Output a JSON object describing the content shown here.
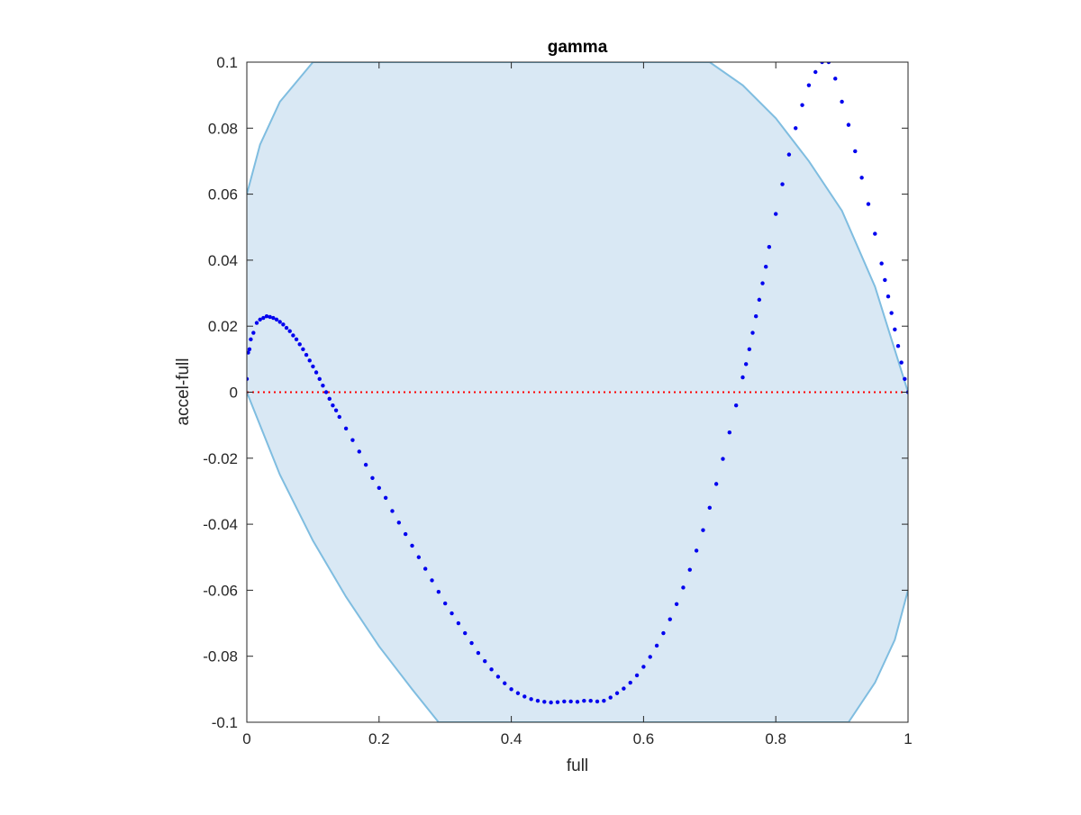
{
  "chart_data": {
    "type": "scatter",
    "title": "gamma",
    "xlabel": "full",
    "ylabel": "accel-full",
    "xlim": [
      0,
      1
    ],
    "ylim": [
      -0.1,
      0.1
    ],
    "xticks": [
      "0",
      "0.2",
      "0.4",
      "0.6",
      "0.8",
      "1"
    ],
    "yticks": [
      "-0.1",
      "-0.08",
      "-0.06",
      "-0.04",
      "-0.02",
      "0",
      "0.02",
      "0.04",
      "0.06",
      "0.08",
      "0.1"
    ],
    "grid": false,
    "legend": "none",
    "reference_line": {
      "y": 0,
      "style": "dotted",
      "color": "#ff0000"
    },
    "shaded_region": {
      "color": "#d9e8f4",
      "edge_color": "#7fbde0",
      "upper_boundary": [
        [
          0,
          0.06
        ],
        [
          0.02,
          0.075
        ],
        [
          0.05,
          0.088
        ],
        [
          0.1,
          0.1
        ],
        [
          0.7,
          0.1
        ],
        [
          0.75,
          0.093
        ],
        [
          0.8,
          0.083
        ],
        [
          0.85,
          0.07
        ],
        [
          0.9,
          0.055
        ],
        [
          0.95,
          0.032
        ],
        [
          1.0,
          0.0
        ]
      ],
      "lower_boundary": [
        [
          0,
          0.0
        ],
        [
          0.05,
          -0.025
        ],
        [
          0.1,
          -0.045
        ],
        [
          0.15,
          -0.062
        ],
        [
          0.2,
          -0.077
        ],
        [
          0.25,
          -0.09
        ],
        [
          0.29,
          -0.1
        ],
        [
          0.91,
          -0.1
        ],
        [
          0.95,
          -0.088
        ],
        [
          0.98,
          -0.075
        ],
        [
          1.0,
          -0.06
        ]
      ]
    },
    "series": [
      {
        "color": "#0000ee",
        "marker": "dot",
        "points": [
          [
            0.0,
            0.004
          ],
          [
            0.002,
            0.012
          ],
          [
            0.004,
            0.013
          ],
          [
            0.006,
            0.016
          ],
          [
            0.01,
            0.018
          ],
          [
            0.015,
            0.021
          ],
          [
            0.02,
            0.022
          ],
          [
            0.025,
            0.0225
          ],
          [
            0.03,
            0.023
          ],
          [
            0.035,
            0.0228
          ],
          [
            0.04,
            0.0225
          ],
          [
            0.045,
            0.022
          ],
          [
            0.05,
            0.0213
          ],
          [
            0.055,
            0.0205
          ],
          [
            0.06,
            0.0195
          ],
          [
            0.065,
            0.0185
          ],
          [
            0.07,
            0.0172
          ],
          [
            0.075,
            0.016
          ],
          [
            0.08,
            0.0145
          ],
          [
            0.085,
            0.013
          ],
          [
            0.09,
            0.0113
          ],
          [
            0.095,
            0.0096
          ],
          [
            0.1,
            0.0078
          ],
          [
            0.105,
            0.006
          ],
          [
            0.11,
            0.004
          ],
          [
            0.115,
            0.002
          ],
          [
            0.12,
            0.0
          ],
          [
            0.125,
            -0.002
          ],
          [
            0.13,
            -0.004
          ],
          [
            0.135,
            -0.0055
          ],
          [
            0.14,
            -0.0075
          ],
          [
            0.15,
            -0.011
          ],
          [
            0.16,
            -0.0145
          ],
          [
            0.17,
            -0.018
          ],
          [
            0.18,
            -0.022
          ],
          [
            0.19,
            -0.026
          ],
          [
            0.2,
            -0.029
          ],
          [
            0.21,
            -0.032
          ],
          [
            0.22,
            -0.036
          ],
          [
            0.23,
            -0.0395
          ],
          [
            0.24,
            -0.043
          ],
          [
            0.25,
            -0.0465
          ],
          [
            0.26,
            -0.05
          ],
          [
            0.27,
            -0.0535
          ],
          [
            0.28,
            -0.057
          ],
          [
            0.29,
            -0.0605
          ],
          [
            0.3,
            -0.064
          ],
          [
            0.31,
            -0.067
          ],
          [
            0.32,
            -0.07
          ],
          [
            0.33,
            -0.073
          ],
          [
            0.34,
            -0.076
          ],
          [
            0.35,
            -0.079
          ],
          [
            0.36,
            -0.0815
          ],
          [
            0.37,
            -0.084
          ],
          [
            0.38,
            -0.0862
          ],
          [
            0.39,
            -0.0882
          ],
          [
            0.4,
            -0.09
          ],
          [
            0.41,
            -0.0912
          ],
          [
            0.42,
            -0.0922
          ],
          [
            0.43,
            -0.093
          ],
          [
            0.44,
            -0.0935
          ],
          [
            0.45,
            -0.0938
          ],
          [
            0.46,
            -0.094
          ],
          [
            0.47,
            -0.0939
          ],
          [
            0.48,
            -0.0937
          ],
          [
            0.49,
            -0.0937
          ],
          [
            0.5,
            -0.0938
          ],
          [
            0.51,
            -0.0935
          ],
          [
            0.52,
            -0.0935
          ],
          [
            0.53,
            -0.0937
          ],
          [
            0.54,
            -0.0935
          ],
          [
            0.55,
            -0.0925
          ],
          [
            0.56,
            -0.0912
          ],
          [
            0.57,
            -0.0898
          ],
          [
            0.58,
            -0.088
          ],
          [
            0.59,
            -0.0858
          ],
          [
            0.6,
            -0.0832
          ],
          [
            0.61,
            -0.0802
          ],
          [
            0.62,
            -0.0768
          ],
          [
            0.63,
            -0.073
          ],
          [
            0.64,
            -0.0688
          ],
          [
            0.65,
            -0.0642
          ],
          [
            0.66,
            -0.0592
          ],
          [
            0.67,
            -0.0538
          ],
          [
            0.68,
            -0.048
          ],
          [
            0.69,
            -0.0418
          ],
          [
            0.7,
            -0.035
          ],
          [
            0.71,
            -0.0278
          ],
          [
            0.72,
            -0.0202
          ],
          [
            0.73,
            -0.0122
          ],
          [
            0.74,
            -0.004
          ],
          [
            0.75,
            0.0045
          ],
          [
            0.755,
            0.0085
          ],
          [
            0.76,
            0.013
          ],
          [
            0.765,
            0.018
          ],
          [
            0.77,
            0.023
          ],
          [
            0.775,
            0.028
          ],
          [
            0.78,
            0.033
          ],
          [
            0.785,
            0.038
          ],
          [
            0.79,
            0.044
          ],
          [
            0.8,
            0.054
          ],
          [
            0.81,
            0.063
          ],
          [
            0.82,
            0.072
          ],
          [
            0.83,
            0.08
          ],
          [
            0.84,
            0.087
          ],
          [
            0.85,
            0.093
          ],
          [
            0.86,
            0.097
          ],
          [
            0.87,
            0.1
          ],
          [
            0.88,
            0.1
          ],
          [
            0.89,
            0.095
          ],
          [
            0.9,
            0.088
          ],
          [
            0.91,
            0.081
          ],
          [
            0.92,
            0.073
          ],
          [
            0.93,
            0.065
          ],
          [
            0.94,
            0.057
          ],
          [
            0.95,
            0.048
          ],
          [
            0.96,
            0.039
          ],
          [
            0.965,
            0.034
          ],
          [
            0.97,
            0.029
          ],
          [
            0.975,
            0.024
          ],
          [
            0.98,
            0.019
          ],
          [
            0.985,
            0.014
          ],
          [
            0.99,
            0.009
          ],
          [
            0.995,
            0.004
          ],
          [
            1.0,
            0.0
          ]
        ]
      }
    ]
  }
}
